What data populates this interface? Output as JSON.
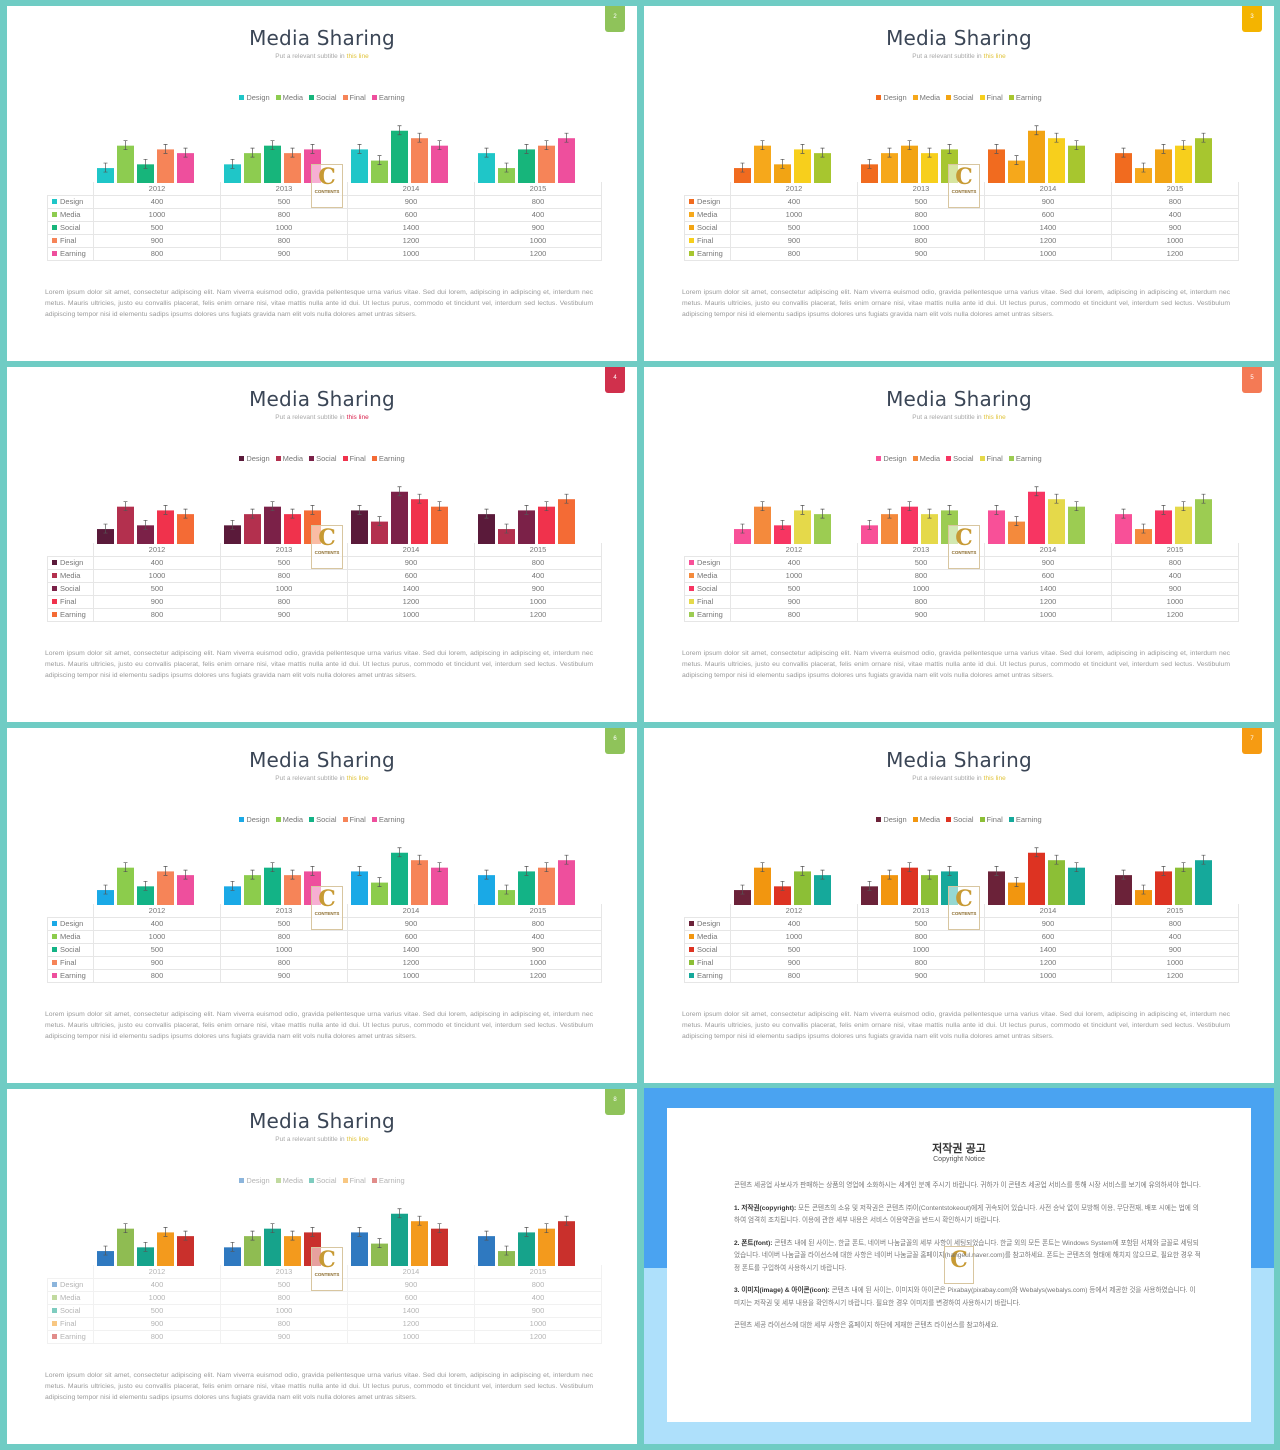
{
  "slides": [
    {
      "title": "Media Sharing",
      "subtitle": "Put a relevant subtitle in",
      "subtitle_link": "this line",
      "link_color": "#e0c33a",
      "page": "2",
      "badge_color": "#8fc35a",
      "colors": [
        "#1fc6c8",
        "#8dcc50",
        "#17b57b",
        "#f68458",
        "#ee4f9d"
      ],
      "faded": false
    },
    {
      "title": "Media Sharing",
      "subtitle": "Put a relevant subtitle in",
      "subtitle_link": "this line",
      "link_color": "#e0c33a",
      "page": "3",
      "badge_color": "#f4b400",
      "colors": [
        "#f16b1f",
        "#f6a81b",
        "#f2a414",
        "#f7cf1c",
        "#a7c62f"
      ],
      "faded": false
    },
    {
      "title": "Media Sharing",
      "subtitle": "Put a relevant subtitle in",
      "subtitle_link": "this line",
      "link_color": "#d81f4a",
      "page": "4",
      "badge_color": "#d0304c",
      "colors": [
        "#5a1a3a",
        "#b3304e",
        "#7b2148",
        "#f0324c",
        "#f46b35"
      ],
      "faded": false
    },
    {
      "title": "Media Sharing",
      "subtitle": "Put a relevant subtitle in",
      "subtitle_link": "this line",
      "link_color": "#e0c33a",
      "page": "5",
      "badge_color": "#f47a55",
      "colors": [
        "#f85098",
        "#f48a3c",
        "#f73562",
        "#e5d94a",
        "#9ccc52"
      ],
      "faded": false
    },
    {
      "title": "Media Sharing",
      "subtitle": "Put a relevant subtitle in",
      "subtitle_link": "this line",
      "link_color": "#e0c33a",
      "page": "6",
      "badge_color": "#8fc35a",
      "colors": [
        "#1aa9e6",
        "#8ccc4c",
        "#13b386",
        "#f68458",
        "#ee4f9d"
      ],
      "faded": false
    },
    {
      "title": "Media Sharing",
      "subtitle": "Put a relevant subtitle in",
      "subtitle_link": "this line",
      "link_color": "#e0c33a",
      "page": "7",
      "badge_color": "#f69b12",
      "colors": [
        "#6b2239",
        "#f2960f",
        "#dd3322",
        "#8cbf36",
        "#15a99b"
      ],
      "faded": false
    },
    {
      "title": "Media Sharing",
      "subtitle": "Put a relevant subtitle in",
      "subtitle_link": "this line",
      "link_color": "#e0c33a",
      "page": "8",
      "badge_color": "#8fc35a",
      "colors": [
        "#2f79c0",
        "#8fbc52",
        "#16a38b",
        "#f39a1d",
        "#c9302c"
      ],
      "faded": true
    }
  ],
  "legend_labels": [
    "Design",
    "Media",
    "Social",
    "Final",
    "Earning"
  ],
  "watermark": {
    "letter": "C",
    "text": "CONTENTS"
  },
  "body_text": "Lorem ipsum dolor sit amet, consectetur adipiscing elit. Nam viverra euismod odio, gravida pellentesque urna varius vitae. Sed dui lorem, adipiscing in adipiscing et, interdum nec metus. Mauris ultricies, justo eu convallis placerat, felis enim ornare nisi, vitae mattis nulla ante id dui. Ut lectus purus, commodo et tincidunt vel, interdum sed lectus. Vestibulum adipiscing tempor nisi id elementu sadips ipsums dolores uns fugiats gravida nam elit vols nulla dolores amet untras sitsers.",
  "chart_data": {
    "type": "bar",
    "categories": [
      "2012",
      "2013",
      "2014",
      "2015"
    ],
    "series": [
      {
        "name": "Design",
        "values": [
          400,
          500,
          900,
          800
        ]
      },
      {
        "name": "Media",
        "values": [
          1000,
          800,
          600,
          400
        ]
      },
      {
        "name": "Social",
        "values": [
          500,
          1000,
          1400,
          900
        ]
      },
      {
        "name": "Final",
        "values": [
          900,
          800,
          1200,
          1000
        ]
      },
      {
        "name": "Earning",
        "values": [
          800,
          900,
          1000,
          1200
        ]
      }
    ],
    "ylim": [
      0,
      1500
    ],
    "error_bars": true
  },
  "notice": {
    "title": "저작권 공고",
    "subtitle": "Copyright Notice",
    "intro": "콘텐츠 세공업 사보사가 판매하는 상품의 영업에 소화하시는 세계인 분께 주시기 바랍니다. 귀하가 이 콘텐츠 세공업 서비스를 통해 시장 서비스를 보기에 유의하셔야 합니다.",
    "s1_head": "1. 저작권(copyright):",
    "s1_body": " 모든 콘텐츠의 소유 및 저작권은 콘텐츠 ㈜이(Contentstokeout)에게 귀속되어 있습니다. 사전 승낙 없이 모방해 이용, 무단전재, 배포 시에는 법에 의하여 엄격히 조치됩니다. 이용에 관한 세부 내용은 서비스 이용약관을 반드시 확인하시기 바랍니다.",
    "s2_head": "2. 폰트(font):",
    "s2_body": " 콘텐츠 내에 된 사이는, 한글 폰트, 네이버 나눔글꼴의 세부 사항이 세팅되었습니다. 한글 외의 모든 폰트는 Windows System에 포함된 서체와 글꼴로 세팅되었습니다. 네이버 나눔글꼴 라이선스에 대한 사항은 네이버 나눔글꼴 홈페이지(hangeul.naver.com)를 참고하세요. 폰트는 콘텐츠의 형태에 해치지 않으므로, 필요한 경우 적정 폰트를 구입하여 사용하시기 바랍니다.",
    "s3_head": "3. 이미지(image) & 아이콘(icon):",
    "s3_body": " 콘텐츠 내에 된 사이는, 이미지와 아이콘은 Pixabay(pixabay.com)와 Webalys(webalys.com) 등에서 제공한 것을 사용하였습니다. 이미지는 저작권 및 세부 내용을 확인하시기 바랍니다. 필요한 경우 이미지를 변경하여 사용하시기 바랍니다.",
    "outro": "콘텐츠 세공 라이선스에 대한 세부 사항은 홈페이지 하단에 게재한 콘텐츠 라이선스를 참고하세요.",
    "wm_letter": "C"
  }
}
